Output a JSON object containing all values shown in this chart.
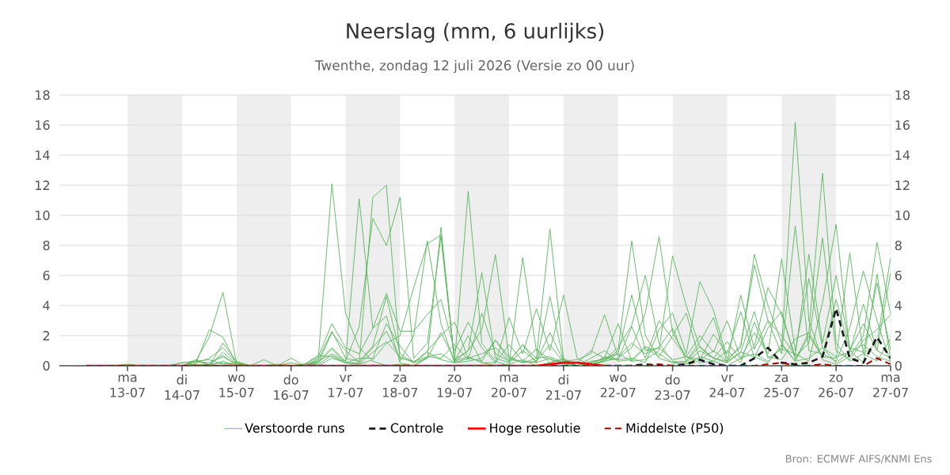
{
  "chart_data": {
    "type": "line",
    "title": "Neerslag (mm, 6 uurlijks)",
    "subtitle": "Twenthe, zondag 12 juli 2026 (Versie zo 00 uur)",
    "annotations": [
      "Bron: ECMWF AIFS/KNMI Ens"
    ],
    "x": [
      "2026-07-12T06:00",
      "2026-07-12T12:00",
      "2026-07-12T18:00",
      "2026-07-13T00:00",
      "2026-07-13T06:00",
      "2026-07-13T12:00",
      "2026-07-13T18:00",
      "2026-07-14T00:00",
      "2026-07-14T06:00",
      "2026-07-14T12:00",
      "2026-07-14T18:00",
      "2026-07-15T00:00",
      "2026-07-15T06:00",
      "2026-07-15T12:00",
      "2026-07-15T18:00",
      "2026-07-16T00:00",
      "2026-07-16T06:00",
      "2026-07-16T12:00",
      "2026-07-16T18:00",
      "2026-07-17T00:00",
      "2026-07-17T06:00",
      "2026-07-17T12:00",
      "2026-07-17T18:00",
      "2026-07-18T00:00",
      "2026-07-18T06:00",
      "2026-07-18T12:00",
      "2026-07-18T18:00",
      "2026-07-19T00:00",
      "2026-07-19T06:00",
      "2026-07-19T12:00",
      "2026-07-19T18:00",
      "2026-07-20T00:00",
      "2026-07-20T06:00",
      "2026-07-20T12:00",
      "2026-07-20T18:00",
      "2026-07-21T00:00",
      "2026-07-21T06:00",
      "2026-07-21T12:00",
      "2026-07-21T18:00",
      "2026-07-22T00:00",
      "2026-07-22T06:00",
      "2026-07-22T12:00",
      "2026-07-22T18:00",
      "2026-07-23T00:00",
      "2026-07-23T06:00",
      "2026-07-23T12:00",
      "2026-07-23T18:00",
      "2026-07-24T00:00",
      "2026-07-24T06:00",
      "2026-07-24T12:00",
      "2026-07-24T18:00",
      "2026-07-25T00:00",
      "2026-07-25T06:00",
      "2026-07-25T12:00",
      "2026-07-25T18:00",
      "2026-07-26T00:00",
      "2026-07-26T06:00",
      "2026-07-26T12:00",
      "2026-07-26T18:00",
      "2026-07-27T00:00"
    ],
    "series": [
      {
        "name": "Verstoorde runs",
        "color": "#5cb860",
        "line_style": "solid",
        "values": [
          null,
          null,
          null,
          null,
          null,
          null,
          null,
          0,
          0.3,
          1.9,
          4.9,
          0.2,
          0,
          0,
          0,
          0,
          0,
          0.5,
          12.1,
          3.5,
          1.2,
          0.3,
          0,
          0.1,
          0,
          0.5,
          9.2,
          0.3,
          2.0,
          0.2,
          0,
          0.1,
          0.4,
          0,
          0.2,
          0.5,
          0,
          0.1,
          0.3,
          1.0,
          8.3,
          2.0,
          0.5,
          0.2,
          0.1,
          0.6,
          0.3,
          0,
          0.5,
          0.8,
          0.3,
          1.2,
          16.2,
          3.0,
          0.4,
          0.1,
          0.6,
          2.0,
          8.2,
          3.4
        ]
      },
      {
        "color": "#5cb860",
        "line_style": "solid",
        "values": [
          null,
          null,
          null,
          null,
          null,
          null,
          0,
          0.2,
          0.3,
          0.1,
          0.2,
          0,
          0,
          0,
          0.1,
          0,
          0,
          0.3,
          0.8,
          0.3,
          11.1,
          2.5,
          3.3,
          0.2,
          0,
          0.6,
          0.8,
          0.2,
          11.6,
          1.5,
          0.3,
          0,
          7.2,
          1.0,
          0.2,
          0.4,
          0,
          0,
          0.3,
          0.5,
          1.2,
          3.5,
          8.6,
          2.2,
          0.6,
          0.2,
          0.3,
          1.0,
          0.2,
          2.9,
          0.6,
          0.4,
          1.8,
          2.2,
          12.8,
          1.5,
          0.3,
          0.8,
          1.5,
          7.2
        ]
      },
      {
        "color": "#5cb860",
        "line_style": "solid",
        "values": [
          null,
          null,
          null,
          null,
          null,
          null,
          null,
          0,
          0.1,
          2.4,
          1.9,
          0.1,
          0,
          0,
          0,
          0,
          0,
          0.2,
          2.2,
          1.0,
          0.2,
          11.2,
          12.0,
          0.3,
          2.0,
          8.3,
          2.8,
          0.2,
          0.5,
          0.8,
          1.2,
          0.3,
          1.4,
          0.5,
          9.1,
          0.4,
          0,
          0.2,
          0.5,
          0.8,
          0.3,
          0.4,
          1.0,
          7.3,
          4.0,
          1.2,
          0.5,
          0.3,
          0.9,
          3.6,
          0.5,
          1.1,
          0.8,
          0.3,
          4.2,
          9.4,
          1.0,
          0.2,
          6.1,
          0.4
        ]
      },
      {
        "color": "#5cb860",
        "line_style": "solid",
        "values": [
          null,
          null,
          null,
          null,
          null,
          null,
          null,
          0,
          0.4,
          0,
          0.3,
          0,
          0,
          0,
          0,
          0,
          0,
          0.3,
          1.2,
          0.3,
          2.6,
          9.8,
          8.0,
          11.2,
          0.5,
          1.5,
          8.6,
          0.3,
          1.0,
          2.4,
          7.4,
          0.5,
          0.2,
          0.3,
          1.4,
          0.2,
          0,
          0,
          0.6,
          0.4,
          0.5,
          0.2,
          2.4,
          3.5,
          0.8,
          5.6,
          3.7,
          0.5,
          1.2,
          7.4,
          4.0,
          1.5,
          0.3,
          2.0,
          0.6,
          0.5,
          7.5,
          0.8,
          0.3,
          1.8
        ]
      },
      {
        "color": "#5cb860",
        "line_style": "solid",
        "values": [
          null,
          null,
          null,
          null,
          null,
          null,
          null,
          0,
          0.1,
          0,
          1.5,
          0.3,
          0,
          0,
          0,
          0,
          0.1,
          0.6,
          2.8,
          1.2,
          0.8,
          2.5,
          4.8,
          2.3,
          2.3,
          3.4,
          4.4,
          1.0,
          2.9,
          1.2,
          0.2,
          3.2,
          0.8,
          3.8,
          1.0,
          4.7,
          0.5,
          0,
          0.4,
          0.8,
          4.7,
          1.0,
          1.2,
          2.5,
          0.3,
          1.6,
          3.2,
          0.2,
          4.7,
          1.1,
          3.0,
          2.0,
          0.7,
          7.4,
          1.5,
          6.0,
          1.2,
          0.9,
          5.5,
          1.0
        ]
      },
      {
        "color": "#5cb860",
        "line_style": "solid",
        "values": [
          null,
          null,
          null,
          null,
          null,
          null,
          null,
          0,
          0.2,
          0.5,
          1.2,
          0.2,
          0,
          0,
          0,
          0,
          0,
          0.4,
          2.3,
          0.5,
          0.3,
          1.3,
          4.6,
          0.8,
          0.2,
          0.5,
          2.2,
          0.4,
          1.0,
          6.2,
          0.5,
          0.2,
          1.0,
          0.3,
          2.2,
          0.3,
          0.4,
          0.8,
          3.4,
          0.6,
          1.5,
          0.8,
          1.2,
          0.4,
          0.6,
          2.0,
          0.9,
          3.0,
          0.5,
          2.2,
          0.8,
          7.1,
          1.0,
          5.8,
          1.2,
          0.6,
          0.9,
          4.1,
          1.0,
          0.5
        ]
      },
      {
        "color": "#5cb860",
        "line_style": "solid",
        "values": [
          null,
          null,
          null,
          null,
          null,
          null,
          null,
          null,
          null,
          0,
          0.9,
          0.1,
          0,
          0,
          0,
          0.2,
          0,
          0,
          0.5,
          0.2,
          0.1,
          0.4,
          1.5,
          2.0,
          5.2,
          8.1,
          8.7,
          0.3,
          0.6,
          0.2,
          0.2,
          1.4,
          0.3,
          0.2,
          0.5,
          0.1,
          0,
          0.2,
          0.5,
          2.8,
          0.3,
          1.2,
          0.6,
          2.0,
          3.5,
          0.4,
          1.0,
          0.3,
          1.4,
          6.7,
          3.0,
          0.8,
          9.3,
          1.0,
          0.8,
          0.3,
          2.5,
          6.3,
          3.0,
          0.2
        ]
      },
      {
        "color": "#5cb860",
        "line_style": "solid",
        "values": [
          null,
          null,
          null,
          null,
          null,
          null,
          null,
          0,
          0.3,
          0.2,
          0.6,
          0.1,
          0,
          0,
          0,
          0,
          0.1,
          0.2,
          1.1,
          0.2,
          0.5,
          0.5,
          2.8,
          1.3,
          0.2,
          1.0,
          2.0,
          2.9,
          0.5,
          0.3,
          1.7,
          0.6,
          0.2,
          0.5,
          0.6,
          0.2,
          0,
          0.3,
          0.4,
          1.2,
          2.7,
          6.0,
          1.5,
          0.3,
          0.2,
          1.0,
          0.5,
          1.6,
          0.4,
          1.3,
          5.2,
          3.4,
          0.6,
          1.5,
          8.5,
          1.0,
          0.4,
          1.7,
          2.4,
          3.4
        ]
      },
      {
        "color": "#5cb860",
        "line_style": "solid",
        "values": [
          null,
          null,
          0,
          0.1,
          0,
          0,
          0,
          0.2,
          0.3,
          0.4,
          0.1,
          0.2,
          0,
          0.4,
          0,
          0.5,
          0,
          0.1,
          0.7,
          0.2,
          0.1,
          0.9,
          1.6,
          0.6,
          0.2,
          0.9,
          0.4,
          0.2,
          0.3,
          0.5,
          1.7,
          0.4,
          0.3,
          1.1,
          0.4,
          0.2,
          0,
          0.5,
          1.0,
          0.3,
          0.4,
          1.3,
          0.8,
          0.2,
          0.3,
          1.3,
          0.5,
          0.2,
          0.9,
          0.6,
          0.2,
          1.4,
          0.3,
          0.5,
          1.2,
          0.2,
          0.9,
          1.4,
          0.6,
          0.3
        ]
      },
      {
        "color": "#5cb860",
        "line_style": "solid",
        "values": [
          null,
          null,
          null,
          null,
          null,
          null,
          null,
          null,
          0,
          0.1,
          0.7,
          0,
          0,
          0,
          0,
          0,
          0.1,
          0.7,
          0.6,
          0.2,
          0.2,
          1.2,
          2.3,
          0.5,
          0.3,
          0.6,
          0.5,
          1.4,
          0.4,
          3.5,
          0.8,
          0.3,
          1.4,
          0.2,
          4.6,
          0.3,
          0.2,
          1.0,
          0.5,
          0.4,
          2.6,
          0.5,
          3.0,
          1.8,
          0.6,
          0.4,
          2.1,
          0.8,
          3.6,
          0.5,
          2.5,
          3.6,
          0.4,
          2.2,
          0.6,
          4.4,
          1.0,
          2.8,
          1.0,
          6.2
        ]
      },
      {
        "name": "Controle",
        "color": "#1a1a1a",
        "line_style": "dashed",
        "values": [
          null,
          null,
          null,
          null,
          null,
          null,
          null,
          null,
          null,
          null,
          null,
          null,
          null,
          null,
          null,
          null,
          null,
          null,
          null,
          null,
          null,
          null,
          null,
          null,
          null,
          null,
          null,
          null,
          null,
          null,
          null,
          null,
          null,
          null,
          null,
          null,
          null,
          null,
          0,
          0,
          0,
          0.1,
          0,
          0,
          0.1,
          0.4,
          0.1,
          0,
          0,
          0.5,
          1.2,
          0.2,
          0.1,
          0.2,
          0.6,
          3.8,
          0.5,
          0.2,
          1.9,
          0.5
        ]
      },
      {
        "name": "Hoge resolutie",
        "color": "#ff0000",
        "line_style": "solid",
        "values": [
          0,
          0,
          0,
          0,
          0,
          0,
          0,
          0,
          0,
          0,
          0,
          0,
          0,
          0,
          0,
          0,
          0,
          0,
          0,
          0,
          0,
          0,
          0,
          0,
          0,
          0,
          0,
          0,
          0,
          0,
          0,
          0,
          0,
          0,
          0.1,
          0.2,
          0.2,
          0.1,
          0,
          null,
          null,
          null,
          null,
          null,
          null,
          null,
          null,
          null,
          null,
          null,
          null,
          null,
          null,
          null,
          null,
          null,
          null,
          null,
          null,
          null
        ]
      },
      {
        "name": "Middelste (P50)",
        "color": "#a00000",
        "line_style": "dashed",
        "values": [
          0,
          0,
          0,
          0,
          0,
          0,
          0,
          0,
          0,
          0,
          0,
          0,
          0,
          0,
          0,
          0,
          0,
          0,
          0,
          0,
          0,
          0,
          0,
          0,
          0,
          0,
          0,
          0,
          0,
          0,
          0,
          0,
          0,
          0,
          0,
          0,
          0,
          0,
          0,
          0,
          0,
          0,
          0.1,
          0,
          0,
          0,
          0,
          0,
          0,
          0,
          0.1,
          0.2,
          0,
          0,
          0.1,
          0,
          0,
          0,
          0.5,
          0.1
        ]
      }
    ],
    "xlim": [
      "2026-07-11T18:00",
      "2026-07-27T00:00"
    ],
    "xticks": [
      {
        "value": "2026-07-13",
        "label": "ma 13-07"
      },
      {
        "value": "2026-07-14",
        "label": "di 14-07"
      },
      {
        "value": "2026-07-15",
        "label": "wo 15-07"
      },
      {
        "value": "2026-07-16",
        "label": "do 16-07"
      },
      {
        "value": "2026-07-17",
        "label": "vr 17-07"
      },
      {
        "value": "2026-07-18",
        "label": "za 18-07"
      },
      {
        "value": "2026-07-19",
        "label": "zo 19-07"
      },
      {
        "value": "2026-07-20",
        "label": "ma 20-07"
      },
      {
        "value": "2026-07-21",
        "label": "di 21-07"
      },
      {
        "value": "2026-07-22",
        "label": "wo 22-07"
      },
      {
        "value": "2026-07-23",
        "label": "do 23-07"
      },
      {
        "value": "2026-07-24",
        "label": "vr 24-07"
      },
      {
        "value": "2026-07-25",
        "label": "za 25-07"
      },
      {
        "value": "2026-07-26",
        "label": "zo 26-07"
      },
      {
        "value": "2026-07-27",
        "label": "ma 27-07"
      }
    ],
    "ylim": [
      0,
      18
    ],
    "yticks": [
      0,
      2,
      4,
      6,
      8,
      10,
      12,
      14,
      16,
      18
    ],
    "y2lim": [
      0,
      18
    ],
    "y2ticks": [
      0,
      2,
      4,
      6,
      8,
      10,
      12,
      14,
      16,
      18
    ],
    "bands": [
      {
        "axis": "x",
        "from": "2026-07-13",
        "to": "2026-07-14",
        "color": "#eeeeee"
      },
      {
        "axis": "x",
        "from": "2026-07-15",
        "to": "2026-07-16",
        "color": "#eeeeee"
      },
      {
        "axis": "x",
        "from": "2026-07-17",
        "to": "2026-07-18",
        "color": "#eeeeee"
      },
      {
        "axis": "x",
        "from": "2026-07-19",
        "to": "2026-07-20",
        "color": "#eeeeee"
      },
      {
        "axis": "x",
        "from": "2026-07-21",
        "to": "2026-07-22",
        "color": "#eeeeee"
      },
      {
        "axis": "x",
        "from": "2026-07-23",
        "to": "2026-07-24",
        "color": "#eeeeee"
      },
      {
        "axis": "x",
        "from": "2026-07-25",
        "to": "2026-07-26",
        "color": "#eeeeee"
      }
    ],
    "grid": "y",
    "legend": "bottom"
  }
}
